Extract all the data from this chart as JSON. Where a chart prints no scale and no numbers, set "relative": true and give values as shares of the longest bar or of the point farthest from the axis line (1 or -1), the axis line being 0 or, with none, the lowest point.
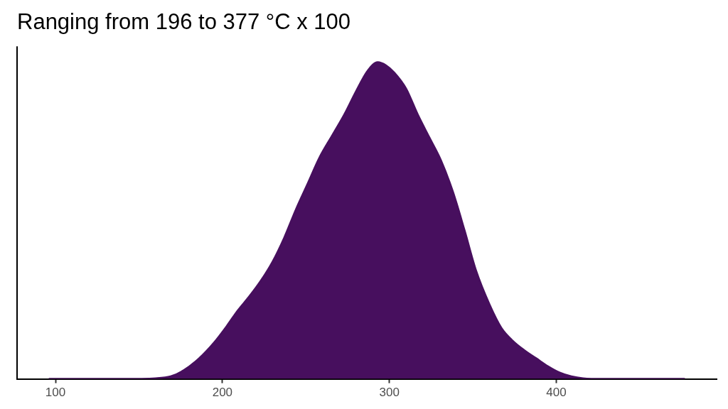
{
  "chart_data": {
    "type": "area",
    "title": "Ranging from 196 to 377 °C x 100",
    "relative": true,
    "x": [
      96,
      140,
      160,
      169,
      177,
      186,
      195,
      203,
      209,
      216,
      223,
      230,
      237,
      244,
      251,
      258,
      266,
      273,
      280,
      287,
      293,
      298,
      303,
      310,
      317,
      324,
      331,
      338,
      345,
      352,
      360,
      367,
      374,
      381,
      388,
      395,
      402,
      409,
      416,
      428,
      477
    ],
    "values": [
      0,
      0,
      0.002,
      0.008,
      0.028,
      0.065,
      0.115,
      0.17,
      0.215,
      0.26,
      0.31,
      0.37,
      0.446,
      0.535,
      0.616,
      0.698,
      0.771,
      0.835,
      0.908,
      0.973,
      1,
      0.99,
      0.967,
      0.917,
      0.835,
      0.762,
      0.689,
      0.592,
      0.47,
      0.341,
      0.235,
      0.162,
      0.12,
      0.09,
      0.065,
      0.04,
      0.02,
      0.008,
      0.002,
      0,
      0
    ],
    "color": "#470f5e",
    "xlim": [
      77,
      496
    ],
    "xticks": [
      100,
      200,
      300,
      400
    ],
    "marker": "none"
  }
}
